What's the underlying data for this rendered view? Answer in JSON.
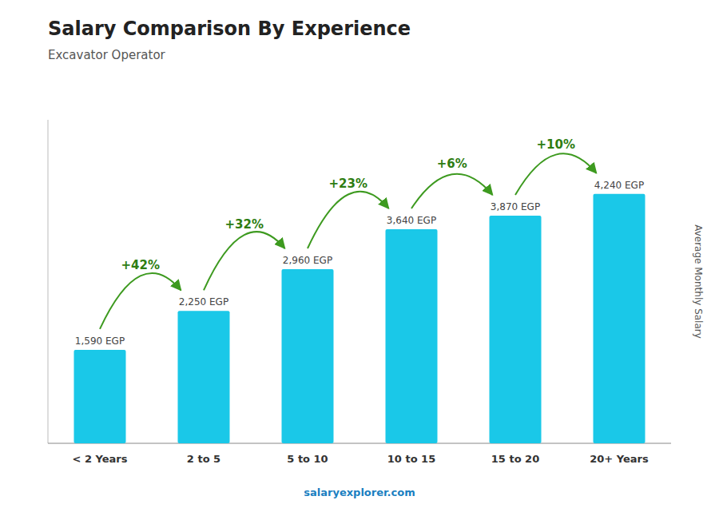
{
  "chart_data": {
    "type": "bar",
    "title": "Salary Comparison By Experience",
    "subtitle": "Excavator Operator",
    "y_label": "Average Monthly Salary",
    "source": "salaryexplorer.com",
    "categories": [
      "< 2 Years",
      "2 to 5",
      "5 to 10",
      "10 to 15",
      "15 to 20",
      "20+ Years"
    ],
    "values": [
      1590,
      2250,
      2960,
      3640,
      3870,
      4240
    ],
    "value_labels": [
      "1,590 EGP",
      "2,250 EGP",
      "2,960 EGP",
      "3,640 EGP",
      "3,870 EGP",
      "4,240 EGP"
    ],
    "change_labels": [
      null,
      "+42%",
      "+32%",
      "+23%",
      "+6%",
      "+10%"
    ],
    "color": "#1ac8e8",
    "ylim": [
      0,
      5500
    ],
    "data_labels": true,
    "tick_labels": "x",
    "grid": false
  }
}
